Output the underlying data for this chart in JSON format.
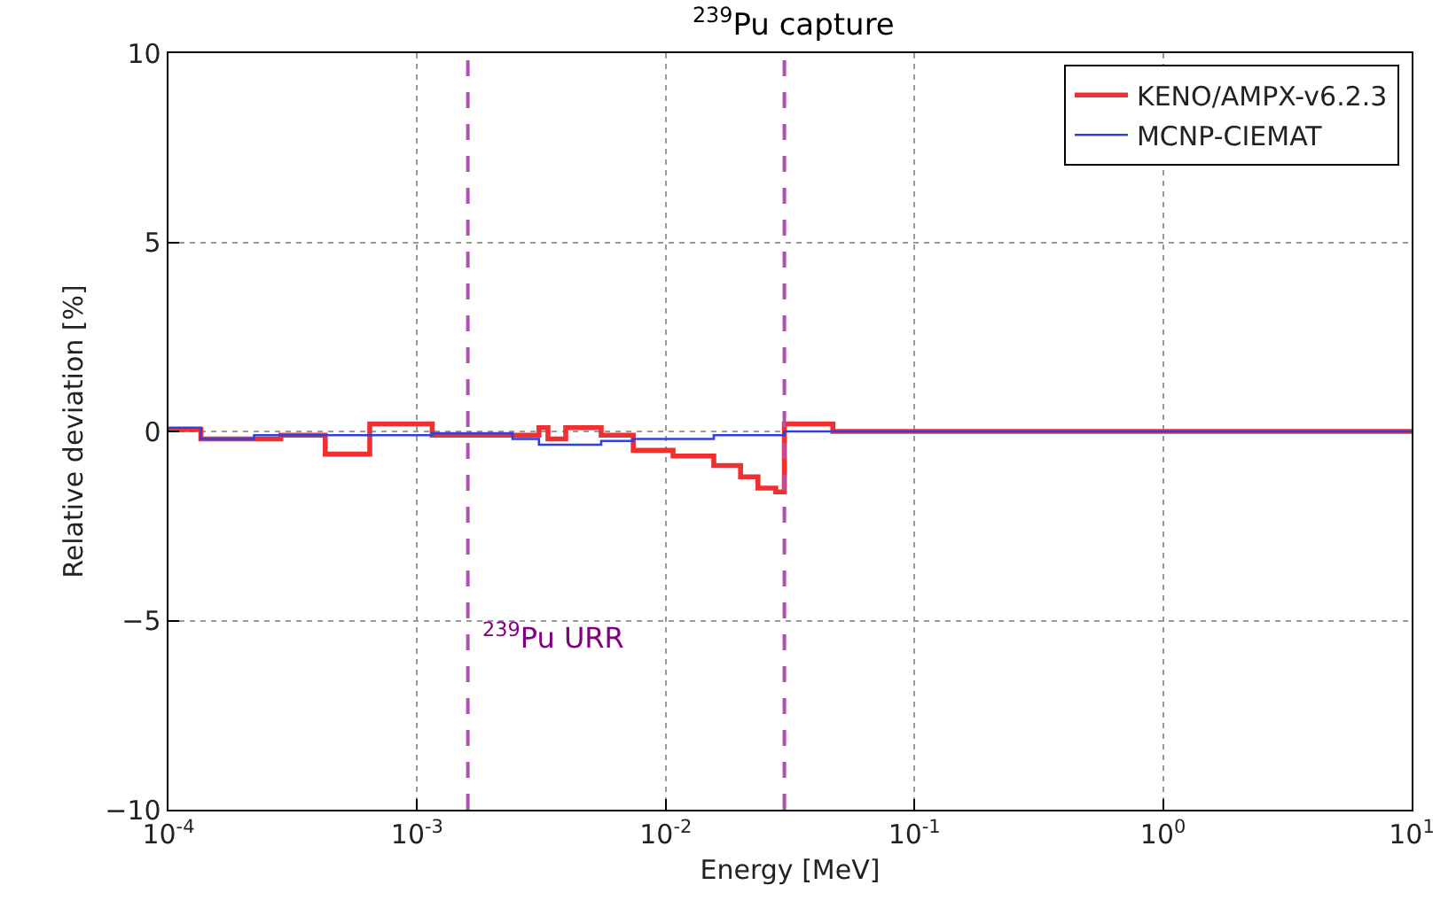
{
  "chart_data": {
    "type": "step",
    "title": "$^{239}$Pu capture",
    "xlabel": "Energy [MeV]",
    "ylabel": "Relative deviation [%]",
    "log": "x",
    "grid": true,
    "legend": "top right",
    "line_style": "solid",
    "marker": "none",
    "xlim": [
      0.0001,
      10
    ],
    "xticks": [
      {
        "value": 0.0001,
        "label": "10$^{-4}$"
      },
      {
        "value": 0.001,
        "label": "10$^{-3}$"
      },
      {
        "value": 0.01,
        "label": "10$^{-2}$"
      },
      {
        "value": 0.1,
        "label": "10$^{-1}$"
      },
      {
        "value": 1,
        "label": "10$^{0}$"
      },
      {
        "value": 10,
        "label": "10$^{1}$"
      }
    ],
    "ylim": [
      -10,
      10
    ],
    "yticks": [
      {
        "value": -10,
        "label": "−10"
      },
      {
        "value": -5,
        "label": "−5"
      },
      0,
      5,
      10
    ],
    "series": [
      {
        "name": "KENO/AMPX-v6.2.3",
        "color": "#f03030",
        "x": [
          0.0001,
          0.000135,
          0.000283,
          0.000427,
          0.000645,
          0.00115,
          0.00309,
          0.00336,
          0.00396,
          0.0055,
          0.0074,
          0.0107,
          0.0156,
          0.02,
          0.0235,
          0.0277,
          0.03,
          0.047,
          10
        ],
        "values": [
          0.05,
          -0.2,
          -0.1,
          -0.6,
          0.2,
          -0.1,
          0.1,
          -0.2,
          0.1,
          -0.1,
          -0.5,
          -0.65,
          -0.9,
          -1.2,
          -1.5,
          -1.6,
          0.2,
          0,
          0
        ]
      },
      {
        "name": "MCNP-CIEMAT",
        "color": "#3040e0",
        "x": [
          0.0001,
          0.000135,
          0.000221,
          0.00115,
          0.00242,
          0.00309,
          0.0055,
          0.0074,
          0.0156,
          0.03,
          10
        ],
        "values": [
          0.1,
          -0.2,
          -0.1,
          -0.05,
          -0.2,
          -0.35,
          -0.25,
          -0.2,
          -0.1,
          0,
          0
        ]
      }
    ],
    "ref_lines": [
      {
        "axis": "x",
        "value": 0.0016,
        "color": "#b050b0",
        "line_style": "dashed"
      },
      {
        "axis": "x",
        "value": 0.03,
        "color": "#b050b0",
        "line_style": "dashed"
      }
    ],
    "annotations": [
      "$^{239}$Pu URR"
    ]
  }
}
